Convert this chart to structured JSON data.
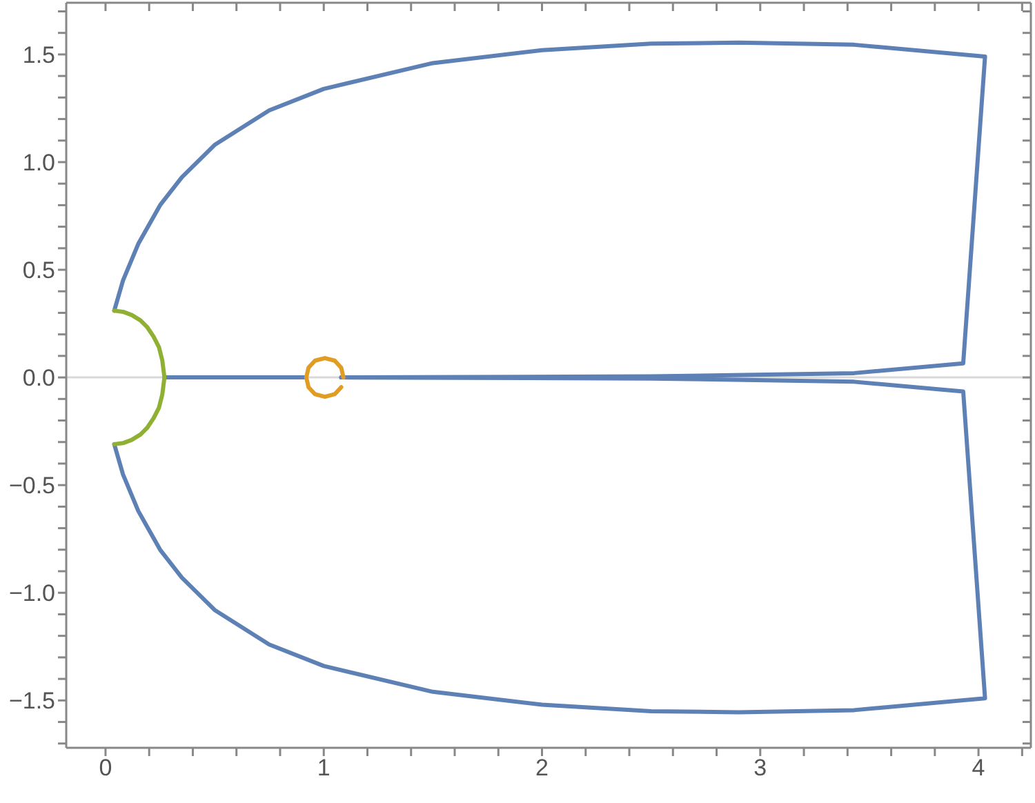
{
  "chart_data": {
    "type": "line",
    "xlim": [
      -0.18,
      4.24
    ],
    "ylim": [
      -1.72,
      1.74
    ],
    "xticks": [
      0,
      {
        "value": 0.2,
        "label": null
      },
      {
        "value": 0.4,
        "label": null
      },
      {
        "value": 0.6,
        "label": null
      },
      {
        "value": 0.8,
        "label": null
      },
      1,
      {
        "value": 1.2,
        "label": null
      },
      {
        "value": 1.4,
        "label": null
      },
      {
        "value": 1.6,
        "label": null
      },
      {
        "value": 1.8,
        "label": null
      },
      2,
      {
        "value": 2.2,
        "label": null
      },
      {
        "value": 2.4,
        "label": null
      },
      {
        "value": 2.6,
        "label": null
      },
      {
        "value": 2.8,
        "label": null
      },
      3,
      {
        "value": 3.2,
        "label": null
      },
      {
        "value": 3.4,
        "label": null
      },
      {
        "value": 3.6,
        "label": null
      },
      {
        "value": 3.8,
        "label": null
      },
      4,
      {
        "value": 4.2,
        "label": null
      }
    ],
    "yticks": [
      {
        "value": -1.5,
        "label": "−1.5"
      },
      {
        "value": -1.0,
        "label": "−1.0"
      },
      {
        "value": -0.5,
        "label": "−0.5"
      },
      {
        "value": 0,
        "label": "0.0"
      },
      {
        "value": 0.5,
        "label": "0.5"
      },
      {
        "value": 1,
        "label": "1.0"
      },
      {
        "value": 1.5,
        "label": "1.5"
      },
      {
        "value": -1.7,
        "label": null
      },
      {
        "value": -1.6,
        "label": null
      },
      {
        "value": -1.4,
        "label": null
      },
      {
        "value": -1.3,
        "label": null
      },
      {
        "value": -1.2,
        "label": null
      },
      {
        "value": -1.1,
        "label": null
      },
      {
        "value": -0.9,
        "label": null
      },
      {
        "value": -0.8,
        "label": null
      },
      {
        "value": -0.7,
        "label": null
      },
      {
        "value": -0.6,
        "label": null
      },
      {
        "value": -0.4,
        "label": null
      },
      {
        "value": -0.3,
        "label": null
      },
      {
        "value": -0.2,
        "label": null
      },
      {
        "value": -0.1,
        "label": null
      },
      {
        "value": 0.1,
        "label": null
      },
      {
        "value": 0.2,
        "label": null
      },
      {
        "value": 0.3,
        "label": null
      },
      {
        "value": 0.4,
        "label": null
      },
      {
        "value": 0.6,
        "label": null
      },
      {
        "value": 0.7,
        "label": null
      },
      {
        "value": 0.8,
        "label": null
      },
      {
        "value": 0.9,
        "label": null
      },
      {
        "value": 1.1,
        "label": null
      },
      {
        "value": 1.2,
        "label": null
      },
      {
        "value": 1.3,
        "label": null
      },
      {
        "value": 1.4,
        "label": null
      },
      {
        "value": 1.6,
        "label": null
      },
      {
        "value": 1.7,
        "label": null
      }
    ],
    "marker": "none",
    "line_style": "solid",
    "ref_lines": [
      {
        "axis": "y",
        "value": 0,
        "color": "#d9d9d9"
      }
    ],
    "series": [
      {
        "color": "#5e81b5",
        "x": [
          0.04,
          0.08,
          0.15,
          0.25,
          0.35,
          0.5,
          0.75,
          1.0,
          1.5,
          2.0,
          2.5,
          2.9,
          3.43,
          4.03,
          3.93,
          3.43,
          2.5,
          1.08
        ],
        "values": [
          0.31,
          0.45,
          0.62,
          0.8,
          0.93,
          1.08,
          1.24,
          1.34,
          1.46,
          1.52,
          1.55,
          1.555,
          1.545,
          1.49,
          0.065,
          0.02,
          0.005,
          0
        ]
      },
      {
        "color": "#5e81b5",
        "x": [
          0.04,
          0.08,
          0.15,
          0.25,
          0.35,
          0.5,
          0.75,
          1.0,
          1.5,
          2.0,
          2.5,
          2.9,
          3.43,
          4.03,
          3.93,
          3.43,
          2.5,
          1.08
        ],
        "values": [
          -0.31,
          -0.45,
          -0.62,
          -0.8,
          -0.93,
          -1.08,
          -1.24,
          -1.34,
          -1.46,
          -1.52,
          -1.55,
          -1.555,
          -1.545,
          -1.49,
          -0.065,
          -0.02,
          -0.005,
          0
        ]
      },
      {
        "color": "#5e81b5",
        "x": [
          0.27,
          0.92
        ],
        "values": [
          0,
          0
        ]
      },
      {
        "color": "#8fb032",
        "x": [
          0.04,
          0.08,
          0.12,
          0.16,
          0.19,
          0.22,
          0.245,
          0.26,
          0.27,
          0.26,
          0.245,
          0.22,
          0.19,
          0.16,
          0.12,
          0.08,
          0.04
        ],
        "values": [
          0.31,
          0.305,
          0.29,
          0.265,
          0.235,
          0.19,
          0.14,
          0.08,
          0,
          -0.08,
          -0.14,
          -0.19,
          -0.235,
          -0.265,
          -0.29,
          -0.305,
          -0.31
        ]
      },
      {
        "color": "#e19c24",
        "x": [
          1.09,
          1.08,
          1.05,
          1.005,
          0.96,
          0.93,
          0.92,
          0.93,
          0.96,
          1.005,
          1.05,
          1.08
        ],
        "values": [
          0,
          0.045,
          0.078,
          0.09,
          0.078,
          0.045,
          0,
          -0.045,
          -0.078,
          -0.09,
          -0.078,
          -0.045
        ]
      }
    ]
  }
}
